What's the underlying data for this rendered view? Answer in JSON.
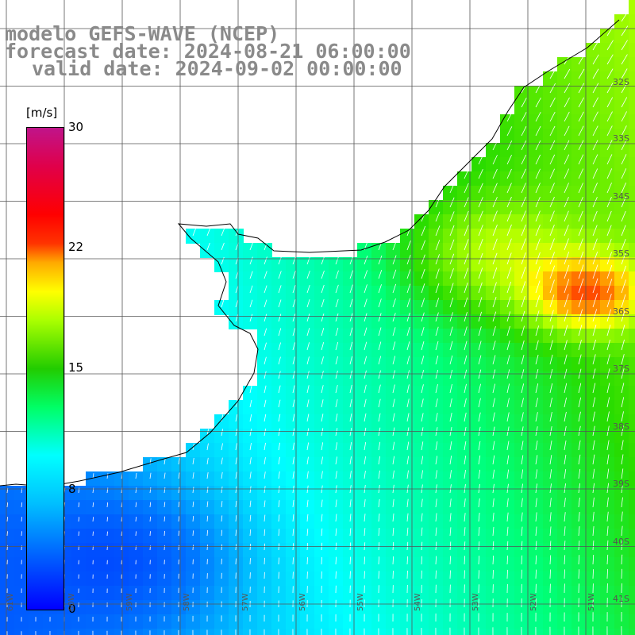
{
  "title": {
    "line1": "modelo GEFS-WAVE (NCEP)",
    "line2": "forecast date: 2024-08-21 06:00:00",
    "line3": "valid date: 2024-09-02 00:00:00"
  },
  "colorbar": {
    "unit": "[m/s]",
    "ticks": [
      "30",
      "22",
      "15",
      "8",
      "0"
    ]
  },
  "lat_labels": [
    "32S",
    "33S",
    "34S",
    "35S",
    "36S",
    "37S",
    "38S",
    "39S",
    "40S",
    "41S"
  ],
  "lon_labels": [
    "61W",
    "60W",
    "59W",
    "58W",
    "57W",
    "56W",
    "55W",
    "54W",
    "53W",
    "52W",
    "51W"
  ],
  "colors": {
    "land": "#ffffff",
    "coast": "#000000",
    "grid": "#555555",
    "arrow": "#ffffff"
  }
}
